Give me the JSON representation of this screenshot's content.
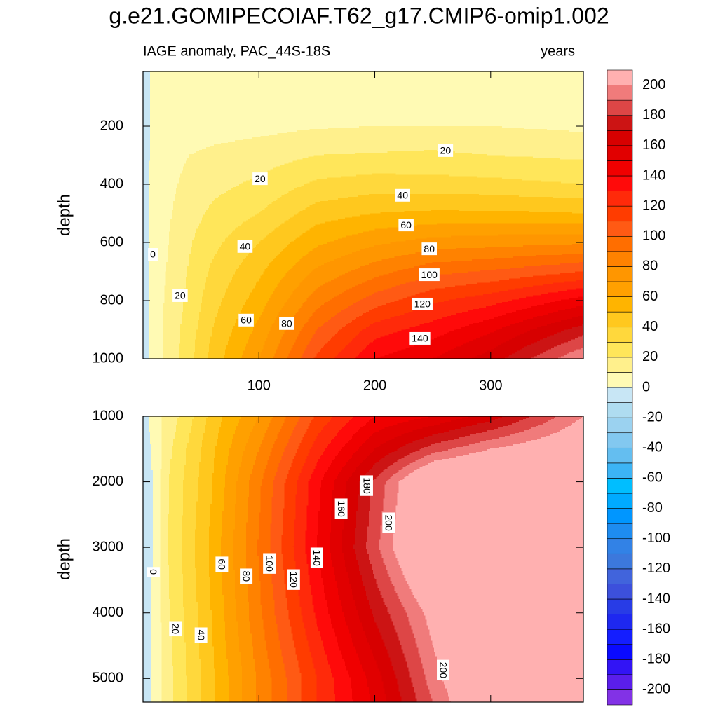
{
  "title": "g.e21.GOMIPECOIAF.T62_g17.CMIP6-omip1.002",
  "chart_data": [
    {
      "type": "contour",
      "subtitle_left": "IAGE anomaly, PAC_44S-18S",
      "subtitle_right": "years",
      "ylabel": "depth",
      "xlim": [
        0,
        380
      ],
      "ylim": [
        12,
        1000
      ],
      "yreverse": true,
      "xticks": [
        100,
        200,
        300
      ],
      "yticks": [
        200,
        400,
        600,
        800,
        1000
      ],
      "show_xtick_labels": true,
      "contour_label_orientation": "horizontal",
      "x": [
        0,
        10,
        20,
        40,
        60,
        100,
        150,
        200,
        250,
        300,
        380
      ],
      "y": [
        12,
        100,
        200,
        300,
        400,
        500,
        600,
        700,
        800,
        900,
        1000
      ],
      "z": [
        [
          -5,
          3,
          3,
          3,
          3,
          3,
          3,
          3,
          3,
          3,
          3
        ],
        [
          -5,
          3,
          4,
          4,
          4,
          5,
          5,
          5,
          5,
          5,
          4
        ],
        [
          -5,
          3,
          5,
          5,
          6,
          7,
          9,
          10,
          10,
          10,
          8
        ],
        [
          -5,
          4,
          6,
          10,
          12,
          15,
          20,
          21,
          22,
          20,
          18
        ],
        [
          -5,
          5,
          7,
          13,
          17,
          22,
          32,
          35,
          34,
          33,
          30
        ],
        [
          -5,
          5,
          8,
          16,
          22,
          30,
          45,
          50,
          52,
          52,
          50
        ],
        [
          -5,
          5,
          9,
          19,
          27,
          40,
          58,
          68,
          74,
          76,
          78
        ],
        [
          -5,
          5,
          10,
          21,
          32,
          48,
          72,
          86,
          97,
          101,
          110
        ],
        [
          -5,
          6,
          11,
          23,
          36,
          55,
          86,
          105,
          118,
          126,
          145
        ],
        [
          -5,
          6,
          12,
          25,
          40,
          63,
          100,
          125,
          135,
          148,
          175
        ],
        [
          -5,
          6,
          12,
          27,
          44,
          70,
          112,
          140,
          150,
          165,
          200
        ]
      ],
      "contour_labels": [
        {
          "value": 0,
          "x": 8.5,
          "y": 641
        },
        {
          "value": 20,
          "x": 32,
          "y": 783
        },
        {
          "value": 40,
          "x": 88,
          "y": 614
        },
        {
          "value": 60,
          "x": 89,
          "y": 867
        },
        {
          "value": 80,
          "x": 124,
          "y": 879
        },
        {
          "value": 20,
          "x": 101,
          "y": 381
        },
        {
          "value": 20,
          "x": 261,
          "y": 284
        },
        {
          "value": 40,
          "x": 224,
          "y": 438
        },
        {
          "value": 60,
          "x": 227,
          "y": 540
        },
        {
          "value": 80,
          "x": 247,
          "y": 622
        },
        {
          "value": 100,
          "x": 247,
          "y": 711
        },
        {
          "value": 120,
          "x": 241,
          "y": 812
        },
        {
          "value": 140,
          "x": 239,
          "y": 930
        }
      ]
    },
    {
      "type": "contour",
      "ylabel": "depth",
      "xlim": [
        0,
        380
      ],
      "ylim": [
        1000,
        5360
      ],
      "yreverse": true,
      "xticks": [
        100,
        200,
        300
      ],
      "yticks": [
        1000,
        2000,
        3000,
        4000,
        5000
      ],
      "show_xtick_labels": false,
      "contour_label_orientation": "vertical",
      "x": [
        0,
        10,
        20,
        40,
        60,
        100,
        150,
        200,
        250,
        300,
        380
      ],
      "y": [
        1000,
        1500,
        2000,
        3000,
        4000,
        5000,
        5360
      ],
      "z": [
        [
          -5,
          6,
          12,
          27,
          44,
          70,
          112,
          140,
          150,
          165,
          200
        ],
        [
          -5,
          2,
          16,
          32,
          48,
          80,
          125,
          160,
          185,
          200,
          215
        ],
        [
          -5,
          1,
          18,
          34,
          50,
          88,
          137,
          182,
          225,
          235,
          240
        ],
        [
          -5,
          1,
          19,
          36,
          53,
          91,
          140,
          187,
          230,
          240,
          245
        ],
        [
          -5,
          2,
          17,
          34,
          51,
          88,
          132,
          172,
          205,
          230,
          240
        ],
        [
          -5,
          2,
          15,
          32,
          48,
          82,
          120,
          155,
          195,
          225,
          240
        ],
        [
          -5,
          2,
          15,
          32,
          48,
          82,
          120,
          152,
          190,
          222,
          238
        ]
      ],
      "contour_labels": [
        {
          "value": 0,
          "x": 9,
          "y": 3374
        },
        {
          "value": 20,
          "x": 28,
          "y": 4241
        },
        {
          "value": 40,
          "x": 50,
          "y": 4337
        },
        {
          "value": 60,
          "x": 68,
          "y": 3257
        },
        {
          "value": 80,
          "x": 89,
          "y": 3439
        },
        {
          "value": 100,
          "x": 109,
          "y": 3246
        },
        {
          "value": 120,
          "x": 130,
          "y": 3492
        },
        {
          "value": 140,
          "x": 150,
          "y": 3160
        },
        {
          "value": 160,
          "x": 171,
          "y": 2412
        },
        {
          "value": 180,
          "x": 193,
          "y": 2059
        },
        {
          "value": 200,
          "x": 212,
          "y": 2626
        },
        {
          "value": 200,
          "x": 259,
          "y": 4872
        }
      ]
    }
  ],
  "colorbar": {
    "levels": [
      -200,
      -190,
      -180,
      -170,
      -160,
      -150,
      -140,
      -130,
      -120,
      -110,
      -100,
      -90,
      -80,
      -70,
      -60,
      -50,
      -40,
      -30,
      -20,
      -10,
      0,
      10,
      20,
      30,
      40,
      50,
      60,
      70,
      80,
      90,
      100,
      110,
      120,
      130,
      140,
      150,
      160,
      170,
      180,
      190,
      200
    ],
    "colors": [
      "#8232e6",
      "#5a1eeb",
      "#3214f5",
      "#0a0aff",
      "#141eff",
      "#1e28f0",
      "#283ce6",
      "#3c50dc",
      "#4164dc",
      "#3c78dc",
      "#3282e6",
      "#1e8cf0",
      "#0096ff",
      "#00aaff",
      "#00beff",
      "#3cb4f5",
      "#64bef0",
      "#82c8f0",
      "#9bd2f0",
      "#afdcf0",
      "#c8e6f5",
      "#fffab4",
      "#fff08c",
      "#ffe65a",
      "#ffd83c",
      "#ffc81e",
      "#ffb400",
      "#ffa000",
      "#ff9600",
      "#ff8200",
      "#ff6e00",
      "#ff5a14",
      "#ff3c00",
      "#ff2a0a",
      "#ff0a0a",
      "#f00000",
      "#e10000",
      "#d70000",
      "#cc1414",
      "#dd4646",
      "#f07b7b",
      "#ffb0b0"
    ],
    "ticks": [
      200,
      180,
      160,
      140,
      120,
      100,
      80,
      60,
      40,
      20,
      0,
      -20,
      -40,
      -60,
      -80,
      -100,
      -120,
      -140,
      -160,
      -180,
      -200
    ]
  }
}
